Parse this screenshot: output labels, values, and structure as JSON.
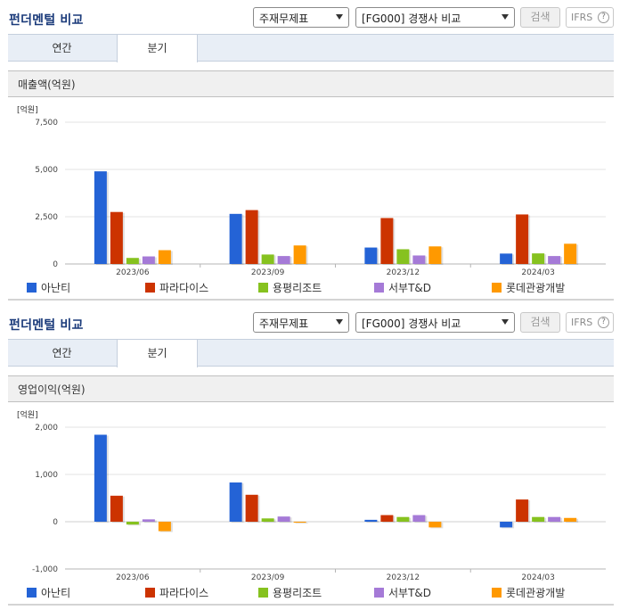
{
  "colors": {
    "title": "#1a3a7a",
    "series": [
      "#2463d6",
      "#cc3300",
      "#86c21f",
      "#a57ad7",
      "#ff9900"
    ]
  },
  "sections": [
    {
      "title": "펀더멘털 비교",
      "select_statement": "주재무제표",
      "select_compare": "[FG000] 경쟁사 비교",
      "search_label": "검색",
      "ifrs_label": "IFRS",
      "help_icon": "?",
      "tab_annual": "연간",
      "tab_quarter": "분기",
      "metric_label": "매출액(억원)"
    },
    {
      "title": "펀더멘털 비교",
      "select_statement": "주재무제표",
      "select_compare": "[FG000] 경쟁사 비교",
      "search_label": "검색",
      "ifrs_label": "IFRS",
      "help_icon": "?",
      "tab_annual": "연간",
      "tab_quarter": "분기",
      "metric_label": "영업이익(억원)"
    }
  ],
  "chart_data": [
    {
      "type": "bar",
      "unit_label": "[억원]",
      "categories": [
        "2023/06",
        "2023/09",
        "2023/12",
        "2024/03"
      ],
      "ylim": [
        0,
        7500
      ],
      "yticks": [
        0,
        2500,
        5000,
        7500
      ],
      "ytick_labels": [
        "0",
        "2,500",
        "5,000",
        "7,500"
      ],
      "grid": true,
      "legend_position": "bottom",
      "series": [
        {
          "name": "아난티",
          "values": [
            4900,
            2650,
            870,
            550
          ]
        },
        {
          "name": "파라다이스",
          "values": [
            2750,
            2850,
            2430,
            2620
          ]
        },
        {
          "name": "용평리조트",
          "values": [
            320,
            500,
            780,
            560
          ]
        },
        {
          "name": "서부T&D",
          "values": [
            400,
            420,
            450,
            420
          ]
        },
        {
          "name": "롯데관광개발",
          "values": [
            730,
            980,
            930,
            1070
          ]
        }
      ]
    },
    {
      "type": "bar",
      "unit_label": "[억원]",
      "categories": [
        "2023/06",
        "2023/09",
        "2023/12",
        "2024/03"
      ],
      "ylim": [
        -1000,
        2000
      ],
      "yticks": [
        -1000,
        0,
        1000,
        2000
      ],
      "ytick_labels": [
        "-1,000",
        "0",
        "1,000",
        "2,000"
      ],
      "grid": true,
      "legend_position": "bottom",
      "series": [
        {
          "name": "아난티",
          "values": [
            1840,
            830,
            40,
            -120
          ]
        },
        {
          "name": "파라다이스",
          "values": [
            550,
            570,
            140,
            470
          ]
        },
        {
          "name": "용평리조트",
          "values": [
            -60,
            70,
            100,
            100
          ]
        },
        {
          "name": "서부T&D",
          "values": [
            50,
            110,
            140,
            100
          ]
        },
        {
          "name": "롯데관광개발",
          "values": [
            -200,
            -20,
            -120,
            80
          ]
        }
      ]
    }
  ]
}
